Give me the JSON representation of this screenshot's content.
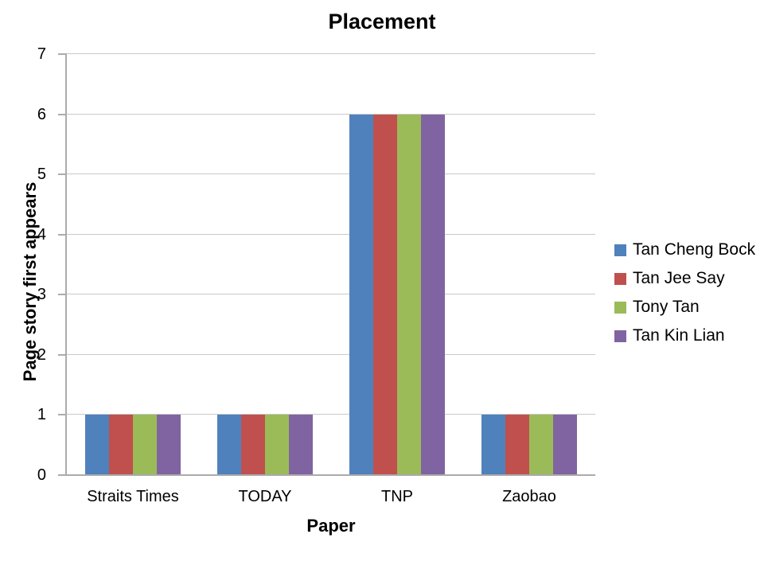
{
  "chart_data": {
    "type": "bar",
    "title": "Placement",
    "xlabel": "Paper",
    "ylabel": "Page story first appears",
    "categories": [
      "Straits Times",
      "TODAY",
      "TNP",
      "Zaobao"
    ],
    "series": [
      {
        "name": "Tan Cheng Bock",
        "color": "#4F81BD",
        "values": [
          1,
          1,
          6,
          1
        ]
      },
      {
        "name": "Tan Jee Say",
        "color": "#C0504D",
        "values": [
          1,
          1,
          6,
          1
        ]
      },
      {
        "name": "Tony Tan",
        "color": "#9BBB59",
        "values": [
          1,
          1,
          6,
          1
        ]
      },
      {
        "name": "Tan Kin Lian",
        "color": "#8064A2",
        "values": [
          1,
          1,
          6,
          1
        ]
      }
    ],
    "ylim": [
      0,
      7
    ],
    "ytick_step": 1,
    "grid": true,
    "legend_position": "right",
    "bar_gap_ratio": 1.5
  },
  "colors": {
    "background": "#ffffff",
    "text": "#000000",
    "gridline": "#c9c9c9",
    "axis": "#ababab"
  }
}
